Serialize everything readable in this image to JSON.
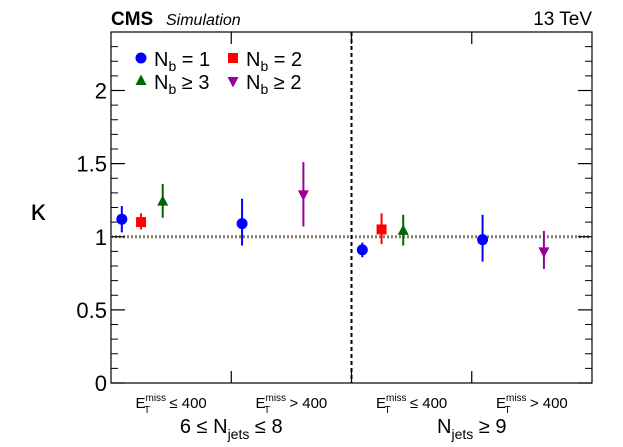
{
  "chart_data": {
    "type": "scatter",
    "title": "",
    "experiment": "CMS",
    "experiment_note": "Simulation",
    "energy": "13 TeV",
    "ylabel": "κ",
    "ylim": [
      0,
      2.4
    ],
    "yticks": [
      0,
      0.5,
      1,
      1.5,
      2
    ],
    "ytick_labels": [
      "0",
      "0.5",
      "1",
      "1.5",
      "2"
    ],
    "reference_line": 1,
    "bins": [
      {
        "met": "≤ 400",
        "group": "6 ≤ N_jets ≤ 8"
      },
      {
        "met": "> 400",
        "group": "6 ≤ N_jets ≤ 8"
      },
      {
        "met": "≤ 400",
        "group": "N_jets ≥ 9"
      },
      {
        "met": "> 400",
        "group": "N_jets ≥ 9"
      }
    ],
    "groups": [
      {
        "label": "6 ≤ N",
        "sub": "jets",
        "rest": " ≤ 8"
      },
      {
        "label": "N",
        "sub": "jets",
        "rest": " ≥ 9"
      }
    ],
    "met_label": {
      "base": "E",
      "sup": "miss",
      "sub": "T"
    },
    "series": [
      {
        "name": "N_b = 1",
        "legend_base": "N",
        "legend_sub": "b",
        "legend_rest": " = 1",
        "color": "#0000ff",
        "marker": "circle",
        "points": [
          {
            "bin": 0,
            "y": 1.12,
            "lo": 1.03,
            "hi": 1.21
          },
          {
            "bin": 1,
            "y": 1.09,
            "lo": 0.94,
            "hi": 1.26
          },
          {
            "bin": 2,
            "y": 0.91,
            "lo": 0.86,
            "hi": 0.96
          },
          {
            "bin": 3,
            "y": 0.98,
            "lo": 0.83,
            "hi": 1.15
          }
        ]
      },
      {
        "name": "N_b = 2",
        "legend_base": "N",
        "legend_sub": "b",
        "legend_rest": " = 2",
        "color": "#ff0000",
        "marker": "square",
        "points": [
          {
            "bin": 0,
            "y": 1.1,
            "lo": 1.05,
            "hi": 1.16
          },
          {
            "bin": 2,
            "y": 1.05,
            "lo": 0.95,
            "hi": 1.16
          }
        ]
      },
      {
        "name": "N_b ≥ 3",
        "legend_base": "N",
        "legend_sub": "b",
        "legend_rest": " ≥ 3",
        "color": "#006600",
        "marker": "triangle-up",
        "points": [
          {
            "bin": 0,
            "y": 1.24,
            "lo": 1.13,
            "hi": 1.36
          },
          {
            "bin": 2,
            "y": 1.04,
            "lo": 0.94,
            "hi": 1.15
          }
        ]
      },
      {
        "name": "N_b ≥ 2",
        "legend_base": "N",
        "legend_sub": "b",
        "legend_rest": " ≥ 2",
        "color": "#990099",
        "marker": "triangle-down",
        "points": [
          {
            "bin": 1,
            "y": 1.29,
            "lo": 1.07,
            "hi": 1.51
          },
          {
            "bin": 3,
            "y": 0.9,
            "lo": 0.78,
            "hi": 1.04
          }
        ]
      }
    ]
  }
}
